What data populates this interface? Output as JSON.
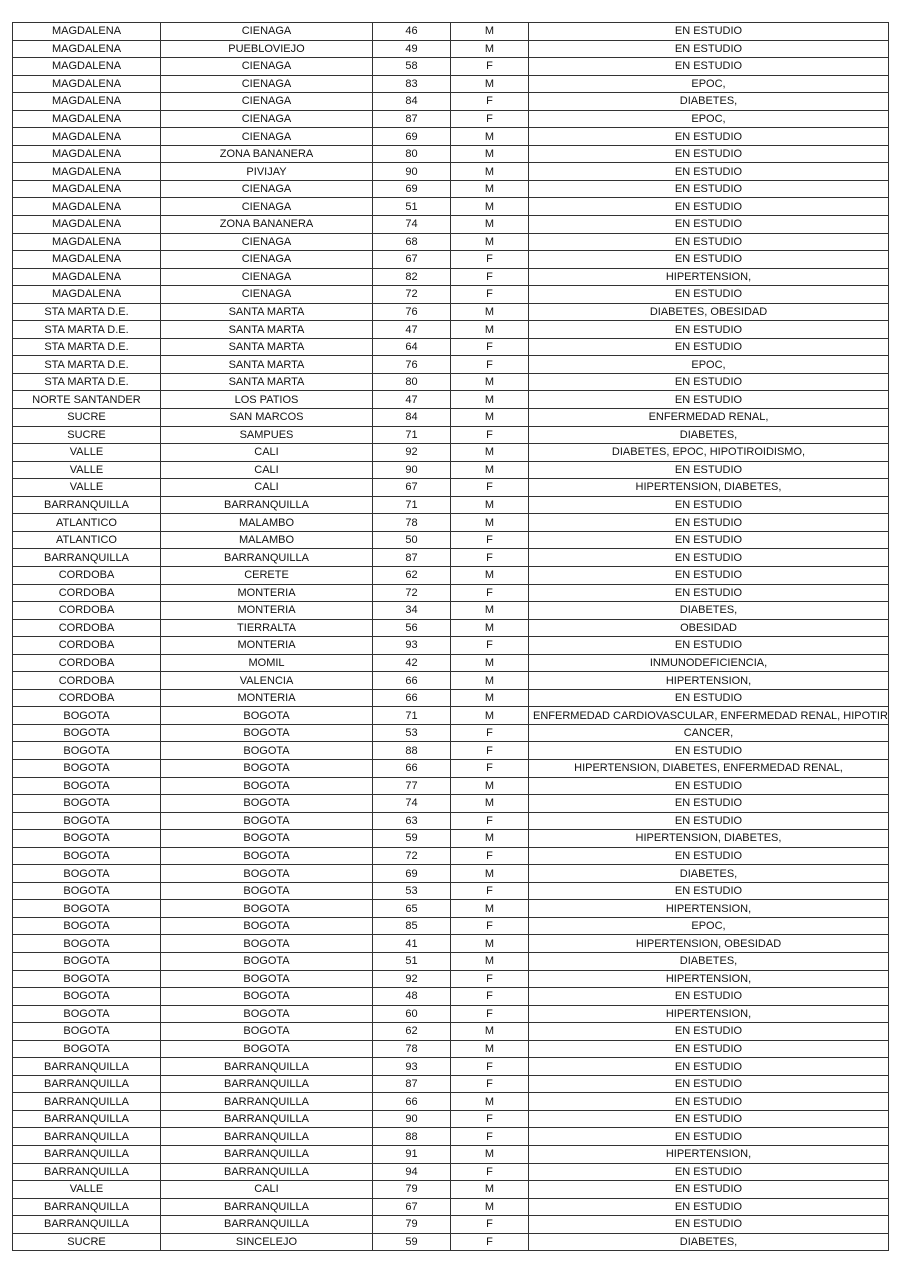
{
  "rows": [
    [
      "MAGDALENA",
      "CIENAGA",
      "46",
      "M",
      "EN ESTUDIO"
    ],
    [
      "MAGDALENA",
      "PUEBLOVIEJO",
      "49",
      "M",
      "EN ESTUDIO"
    ],
    [
      "MAGDALENA",
      "CIENAGA",
      "58",
      "F",
      "EN ESTUDIO"
    ],
    [
      "MAGDALENA",
      "CIENAGA",
      "83",
      "M",
      "EPOC,"
    ],
    [
      "MAGDALENA",
      "CIENAGA",
      "84",
      "F",
      "DIABETES,"
    ],
    [
      "MAGDALENA",
      "CIENAGA",
      "87",
      "F",
      "EPOC,"
    ],
    [
      "MAGDALENA",
      "CIENAGA",
      "69",
      "M",
      "EN ESTUDIO"
    ],
    [
      "MAGDALENA",
      "ZONA BANANERA",
      "80",
      "M",
      "EN ESTUDIO"
    ],
    [
      "MAGDALENA",
      "PIVIJAY",
      "90",
      "M",
      "EN ESTUDIO"
    ],
    [
      "MAGDALENA",
      "CIENAGA",
      "69",
      "M",
      "EN ESTUDIO"
    ],
    [
      "MAGDALENA",
      "CIENAGA",
      "51",
      "M",
      "EN ESTUDIO"
    ],
    [
      "MAGDALENA",
      "ZONA BANANERA",
      "74",
      "M",
      "EN ESTUDIO"
    ],
    [
      "MAGDALENA",
      "CIENAGA",
      "68",
      "M",
      "EN ESTUDIO"
    ],
    [
      "MAGDALENA",
      "CIENAGA",
      "67",
      "F",
      "EN ESTUDIO"
    ],
    [
      "MAGDALENA",
      "CIENAGA",
      "82",
      "F",
      "HIPERTENSION,"
    ],
    [
      "MAGDALENA",
      "CIENAGA",
      "72",
      "F",
      "EN ESTUDIO"
    ],
    [
      "STA MARTA D.E.",
      "SANTA MARTA",
      "76",
      "M",
      "DIABETES, OBESIDAD"
    ],
    [
      "STA MARTA D.E.",
      "SANTA MARTA",
      "47",
      "M",
      "EN ESTUDIO"
    ],
    [
      "STA MARTA D.E.",
      "SANTA MARTA",
      "64",
      "F",
      "EN ESTUDIO"
    ],
    [
      "STA MARTA D.E.",
      "SANTA MARTA",
      "76",
      "F",
      "EPOC,"
    ],
    [
      "STA MARTA D.E.",
      "SANTA MARTA",
      "80",
      "M",
      "EN ESTUDIO"
    ],
    [
      "NORTE SANTANDER",
      "LOS PATIOS",
      "47",
      "M",
      "EN ESTUDIO"
    ],
    [
      "SUCRE",
      "SAN MARCOS",
      "84",
      "M",
      "ENFERMEDAD RENAL,"
    ],
    [
      "SUCRE",
      "SAMPUES",
      "71",
      "F",
      "DIABETES,"
    ],
    [
      "VALLE",
      "CALI",
      "92",
      "M",
      "DIABETES, EPOC, HIPOTIROIDISMO,"
    ],
    [
      "VALLE",
      "CALI",
      "90",
      "M",
      "EN ESTUDIO"
    ],
    [
      "VALLE",
      "CALI",
      "67",
      "F",
      "HIPERTENSION, DIABETES,"
    ],
    [
      "BARRANQUILLA",
      "BARRANQUILLA",
      "71",
      "M",
      "EN ESTUDIO"
    ],
    [
      "ATLANTICO",
      "MALAMBO",
      "78",
      "M",
      "EN ESTUDIO"
    ],
    [
      "ATLANTICO",
      "MALAMBO",
      "50",
      "F",
      "EN ESTUDIO"
    ],
    [
      "BARRANQUILLA",
      "BARRANQUILLA",
      "87",
      "F",
      "EN ESTUDIO"
    ],
    [
      "CORDOBA",
      "CERETE",
      "62",
      "M",
      "EN ESTUDIO"
    ],
    [
      "CORDOBA",
      "MONTERIA",
      "72",
      "F",
      "EN ESTUDIO"
    ],
    [
      "CORDOBA",
      "MONTERIA",
      "34",
      "M",
      "DIABETES,"
    ],
    [
      "CORDOBA",
      "TIERRALTA",
      "56",
      "M",
      "OBESIDAD"
    ],
    [
      "CORDOBA",
      "MONTERIA",
      "93",
      "F",
      "EN ESTUDIO"
    ],
    [
      "CORDOBA",
      "MOMIL",
      "42",
      "M",
      "INMUNODEFICIENCIA,"
    ],
    [
      "CORDOBA",
      "VALENCIA",
      "66",
      "M",
      "HIPERTENSION,"
    ],
    [
      "CORDOBA",
      "MONTERIA",
      "66",
      "M",
      "EN ESTUDIO"
    ],
    [
      "BOGOTA",
      "BOGOTA",
      "71",
      "M",
      "ENFERMEDAD CARDIOVASCULAR, ENFERMEDAD RENAL, HIPOTIROIDISMO,"
    ],
    [
      "BOGOTA",
      "BOGOTA",
      "53",
      "F",
      "CANCER,"
    ],
    [
      "BOGOTA",
      "BOGOTA",
      "88",
      "F",
      "EN ESTUDIO"
    ],
    [
      "BOGOTA",
      "BOGOTA",
      "66",
      "F",
      "HIPERTENSION, DIABETES, ENFERMEDAD RENAL,"
    ],
    [
      "BOGOTA",
      "BOGOTA",
      "77",
      "M",
      "EN ESTUDIO"
    ],
    [
      "BOGOTA",
      "BOGOTA",
      "74",
      "M",
      "EN ESTUDIO"
    ],
    [
      "BOGOTA",
      "BOGOTA",
      "63",
      "F",
      "EN ESTUDIO"
    ],
    [
      "BOGOTA",
      "BOGOTA",
      "59",
      "M",
      "HIPERTENSION, DIABETES,"
    ],
    [
      "BOGOTA",
      "BOGOTA",
      "72",
      "F",
      "EN ESTUDIO"
    ],
    [
      "BOGOTA",
      "BOGOTA",
      "69",
      "M",
      "DIABETES,"
    ],
    [
      "BOGOTA",
      "BOGOTA",
      "53",
      "F",
      "EN ESTUDIO"
    ],
    [
      "BOGOTA",
      "BOGOTA",
      "65",
      "M",
      "HIPERTENSION,"
    ],
    [
      "BOGOTA",
      "BOGOTA",
      "85",
      "F",
      "EPOC,"
    ],
    [
      "BOGOTA",
      "BOGOTA",
      "41",
      "M",
      "HIPERTENSION, OBESIDAD"
    ],
    [
      "BOGOTA",
      "BOGOTA",
      "51",
      "M",
      "DIABETES,"
    ],
    [
      "BOGOTA",
      "BOGOTA",
      "92",
      "F",
      "HIPERTENSION,"
    ],
    [
      "BOGOTA",
      "BOGOTA",
      "48",
      "F",
      "EN ESTUDIO"
    ],
    [
      "BOGOTA",
      "BOGOTA",
      "60",
      "F",
      "HIPERTENSION,"
    ],
    [
      "BOGOTA",
      "BOGOTA",
      "62",
      "M",
      "EN ESTUDIO"
    ],
    [
      "BOGOTA",
      "BOGOTA",
      "78",
      "M",
      "EN ESTUDIO"
    ],
    [
      "BARRANQUILLA",
      "BARRANQUILLA",
      "93",
      "F",
      "EN ESTUDIO"
    ],
    [
      "BARRANQUILLA",
      "BARRANQUILLA",
      "87",
      "F",
      "EN ESTUDIO"
    ],
    [
      "BARRANQUILLA",
      "BARRANQUILLA",
      "66",
      "M",
      "EN ESTUDIO"
    ],
    [
      "BARRANQUILLA",
      "BARRANQUILLA",
      "90",
      "F",
      "EN ESTUDIO"
    ],
    [
      "BARRANQUILLA",
      "BARRANQUILLA",
      "88",
      "F",
      "EN ESTUDIO"
    ],
    [
      "BARRANQUILLA",
      "BARRANQUILLA",
      "91",
      "M",
      "HIPERTENSION,"
    ],
    [
      "BARRANQUILLA",
      "BARRANQUILLA",
      "94",
      "F",
      "EN ESTUDIO"
    ],
    [
      "VALLE",
      "CALI",
      "79",
      "M",
      "EN ESTUDIO"
    ],
    [
      "BARRANQUILLA",
      "BARRANQUILLA",
      "67",
      "M",
      "EN ESTUDIO"
    ],
    [
      "BARRANQUILLA",
      "BARRANQUILLA",
      "79",
      "F",
      "EN ESTUDIO"
    ],
    [
      "SUCRE",
      "SINCELEJO",
      "59",
      "F",
      "DIABETES,"
    ]
  ]
}
